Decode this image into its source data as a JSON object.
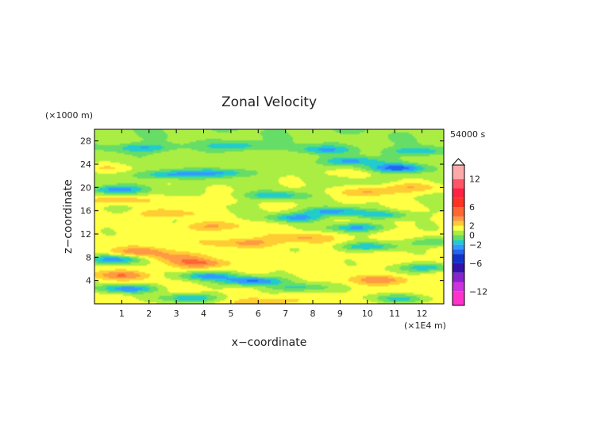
{
  "chart_data": {
    "type": "heatmap",
    "title": "Zonal Velocity",
    "xlabel": "x−coordinate",
    "ylabel": "z−coordinate",
    "x_unit_label": "(×1E4 m)",
    "y_unit_label": "(×1000 m)",
    "time_label": "54000 s",
    "xlim": [
      0,
      12.8
    ],
    "ylim": [
      0,
      30
    ],
    "x_ticks": [
      1,
      2,
      3,
      4,
      5,
      6,
      7,
      8,
      9,
      10,
      11,
      12
    ],
    "y_ticks": [
      4,
      8,
      12,
      16,
      20,
      24,
      28
    ],
    "x_tick_labels": [
      "1",
      "2",
      "3",
      "4",
      "5",
      "6",
      "7",
      "8",
      "9",
      "10",
      "11",
      "12"
    ],
    "y_tick_labels": [
      "4",
      "8",
      "12",
      "16",
      "20",
      "24",
      "28"
    ],
    "colorbar": {
      "range": [
        -15,
        15
      ],
      "tick_values": [
        12,
        6,
        2,
        0,
        -2,
        -6,
        -12
      ],
      "tick_labels": [
        "12",
        "6",
        "2",
        "0",
        "−2",
        "−6",
        "−12"
      ],
      "levels": [
        {
          "from": -15,
          "to": -12,
          "color": "#ff33cc"
        },
        {
          "from": -12,
          "to": -10,
          "color": "#cc33dd"
        },
        {
          "from": -10,
          "to": -8,
          "color": "#8822cc"
        },
        {
          "from": -8,
          "to": -6,
          "color": "#3311aa"
        },
        {
          "from": -6,
          "to": -4,
          "color": "#1133cc"
        },
        {
          "from": -4,
          "to": -3,
          "color": "#2266ee"
        },
        {
          "from": -3,
          "to": -2,
          "color": "#3399ff"
        },
        {
          "from": -2,
          "to": -1,
          "color": "#22cccc"
        },
        {
          "from": -1,
          "to": 0,
          "color": "#66dd66"
        },
        {
          "from": 0,
          "to": 1,
          "color": "#aaee44"
        },
        {
          "from": 1,
          "to": 2,
          "color": "#ffff44"
        },
        {
          "from": 2,
          "to": 3,
          "color": "#ffcc33"
        },
        {
          "from": 3,
          "to": 4,
          "color": "#ff9944"
        },
        {
          "from": 4,
          "to": 6,
          "color": "#ff6633"
        },
        {
          "from": 6,
          "to": 8,
          "color": "#ff3322"
        },
        {
          "from": 8,
          "to": 10,
          "color": "#ff2244"
        },
        {
          "from": 10,
          "to": 12,
          "color": "#ff5566"
        },
        {
          "from": 12,
          "to": 15,
          "color": "#ffaaaa"
        }
      ]
    },
    "dominant_color": "#ffff44",
    "features": [
      {
        "x": 1.2,
        "z": 2.6,
        "value": -2.8
      },
      {
        "x": 3.5,
        "z": 1.0,
        "value": -2.2
      },
      {
        "x": 1.0,
        "z": 4.9,
        "value": 3.5
      },
      {
        "x": 0.8,
        "z": 7.6,
        "value": -2.6
      },
      {
        "x": 1.8,
        "z": 9.0,
        "value": 3.4
      },
      {
        "x": 3.9,
        "z": 7.0,
        "value": 3.8
      },
      {
        "x": 3.0,
        "z": 8.0,
        "value": 3.2
      },
      {
        "x": 4.2,
        "z": 4.8,
        "value": -2.6
      },
      {
        "x": 5.8,
        "z": 3.9,
        "value": -3.6
      },
      {
        "x": 7.5,
        "z": 2.8,
        "value": -1.6
      },
      {
        "x": 10.5,
        "z": 4.1,
        "value": 3.4
      },
      {
        "x": 12.2,
        "z": 6.2,
        "value": -2.0
      },
      {
        "x": 5.6,
        "z": 10.5,
        "value": 3.3
      },
      {
        "x": 4.3,
        "z": 13.3,
        "value": 3.0
      },
      {
        "x": 9.6,
        "z": 13.1,
        "value": -2.4
      },
      {
        "x": 10.0,
        "z": 9.8,
        "value": -2.0
      },
      {
        "x": 7.6,
        "z": 11.3,
        "value": 2.8
      },
      {
        "x": 7.4,
        "z": 14.8,
        "value": -2.2
      },
      {
        "x": 8.7,
        "z": 15.9,
        "value": -2.3
      },
      {
        "x": 0.8,
        "z": 17.8,
        "value": 3.0
      },
      {
        "x": 2.6,
        "z": 15.5,
        "value": 3.0
      },
      {
        "x": 0.8,
        "z": 19.6,
        "value": -2.2
      },
      {
        "x": 10.2,
        "z": 19.2,
        "value": 3.4
      },
      {
        "x": 11.5,
        "z": 20.0,
        "value": 3.0
      },
      {
        "x": 11.1,
        "z": 23.3,
        "value": -2.7
      },
      {
        "x": 2.8,
        "z": 22.2,
        "value": -1.8
      },
      {
        "x": 9.4,
        "z": 24.5,
        "value": -1.6
      },
      {
        "x": 4.7,
        "z": 22.5,
        "value": -1.4
      },
      {
        "x": 6.6,
        "z": 18.6,
        "value": -1.6
      },
      {
        "x": 0.4,
        "z": 23.3,
        "value": 2.4
      },
      {
        "x": 1.8,
        "z": 26.8,
        "value": -1.2
      },
      {
        "x": 8.4,
        "z": 26.5,
        "value": -1.1
      },
      {
        "x": 5.2,
        "z": 27.2,
        "value": -1.0
      },
      {
        "x": 11.8,
        "z": 26.2,
        "value": -1.0
      },
      {
        "x": 6.4,
        "z": 0.5,
        "value": 2.6
      },
      {
        "x": 11.2,
        "z": 0.9,
        "value": -1.3
      },
      {
        "x": 12.5,
        "z": 10.6,
        "value": -1.1
      },
      {
        "x": 10.6,
        "z": 15.3,
        "value": -1.2
      },
      {
        "x": 3.7,
        "z": 17.8,
        "value": 2.3
      },
      {
        "x": 9.0,
        "z": 22.5,
        "value": 2.2
      }
    ]
  }
}
